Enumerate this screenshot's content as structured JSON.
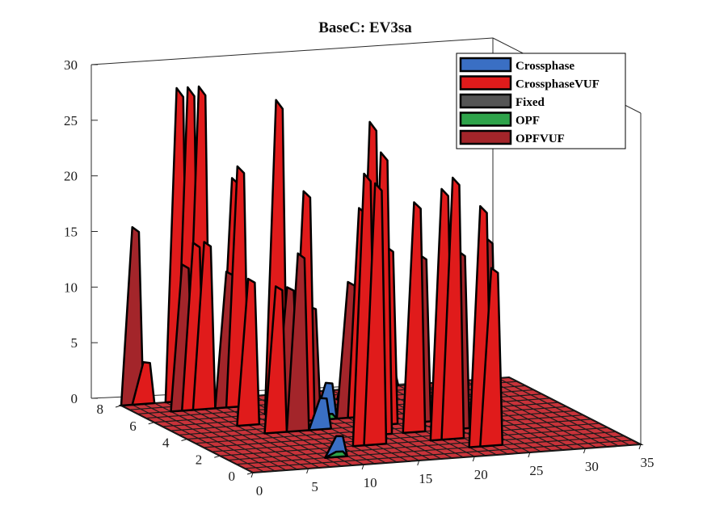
{
  "chart_data": {
    "type": "3d-surface",
    "title": "BaseC: EV3sa",
    "xlabel": "",
    "ylabel": "",
    "zlabel": "",
    "xlim": [
      0,
      35
    ],
    "ylim": [
      0,
      8
    ],
    "zlim": [
      0,
      30
    ],
    "x_ticks": [
      "0",
      "5",
      "10",
      "15",
      "20",
      "25",
      "30",
      "35"
    ],
    "y_ticks": [
      "0",
      "2",
      "4",
      "6",
      "8"
    ],
    "z_ticks": [
      "0",
      "5",
      "10",
      "15",
      "20",
      "25",
      "30"
    ],
    "legend_position": "top-right",
    "grid": false,
    "series": [
      {
        "name": "Crossphase",
        "color": "#3a6fc4",
        "points": [
          [
            9,
            1,
            2.0
          ],
          [
            12,
            4,
            3.0
          ],
          [
            14,
            5,
            3.5
          ],
          [
            19,
            7,
            4.0
          ],
          [
            23,
            8,
            2.0
          ],
          [
            24,
            8,
            2.0
          ]
        ]
      },
      {
        "name": "CrossphaseVUF",
        "color": "#e01b1b",
        "points": [
          [
            2,
            8,
            4.0
          ],
          [
            5,
            7,
            16.0
          ],
          [
            6,
            7,
            16.0
          ],
          [
            7,
            5,
            14.0
          ],
          [
            8,
            4,
            14.0
          ],
          [
            5,
            8,
            30.0
          ],
          [
            6,
            8,
            30.0
          ],
          [
            7,
            8,
            30.0
          ],
          [
            9,
            7,
            23.0
          ],
          [
            10,
            8,
            21.0
          ],
          [
            11,
            6,
            30.0
          ],
          [
            12,
            5,
            22.0
          ],
          [
            13,
            2,
            26.0
          ],
          [
            14,
            2,
            25.0
          ],
          [
            15,
            3,
            30.0
          ],
          [
            16,
            3,
            27.0
          ],
          [
            17,
            5,
            20.0
          ],
          [
            18,
            4,
            17.0
          ],
          [
            19,
            3,
            22.0
          ],
          [
            20,
            2,
            24.0
          ],
          [
            21,
            2,
            25.0
          ],
          [
            22,
            1,
            23.0
          ],
          [
            23,
            1,
            17.0
          ]
        ]
      },
      {
        "name": "Fixed",
        "color": "#555555",
        "points": []
      },
      {
        "name": "OPF",
        "color": "#2ea34a",
        "points": [
          [
            9,
            1,
            0.5
          ],
          [
            14,
            5,
            0.5
          ],
          [
            19,
            7,
            0.5
          ],
          [
            24,
            8,
            0.5
          ]
        ]
      },
      {
        "name": "OPFVUF",
        "color": "#a3252a",
        "points": [
          [
            1,
            8,
            17.0
          ],
          [
            4,
            7,
            14.0
          ],
          [
            8,
            7,
            13.0
          ],
          [
            10,
            4,
            17.0
          ],
          [
            12,
            6,
            12.0
          ],
          [
            14,
            6,
            10.0
          ],
          [
            16,
            5,
            13.0
          ],
          [
            21,
            4,
            16.0
          ],
          [
            23,
            3,
            17.0
          ],
          [
            24,
            2,
            19.0
          ]
        ]
      }
    ]
  }
}
